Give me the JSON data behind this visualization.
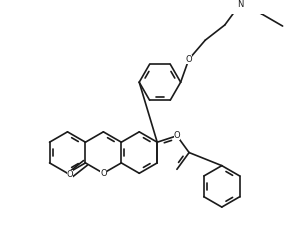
{
  "background_color": "#ffffff",
  "line_color": "#1a1a1a",
  "line_width": 1.2,
  "figsize": [
    3.04,
    2.33
  ],
  "dpi": 100,
  "xlim": [
    -2.5,
    2.5
  ],
  "ylim": [
    -2.0,
    2.0
  ]
}
